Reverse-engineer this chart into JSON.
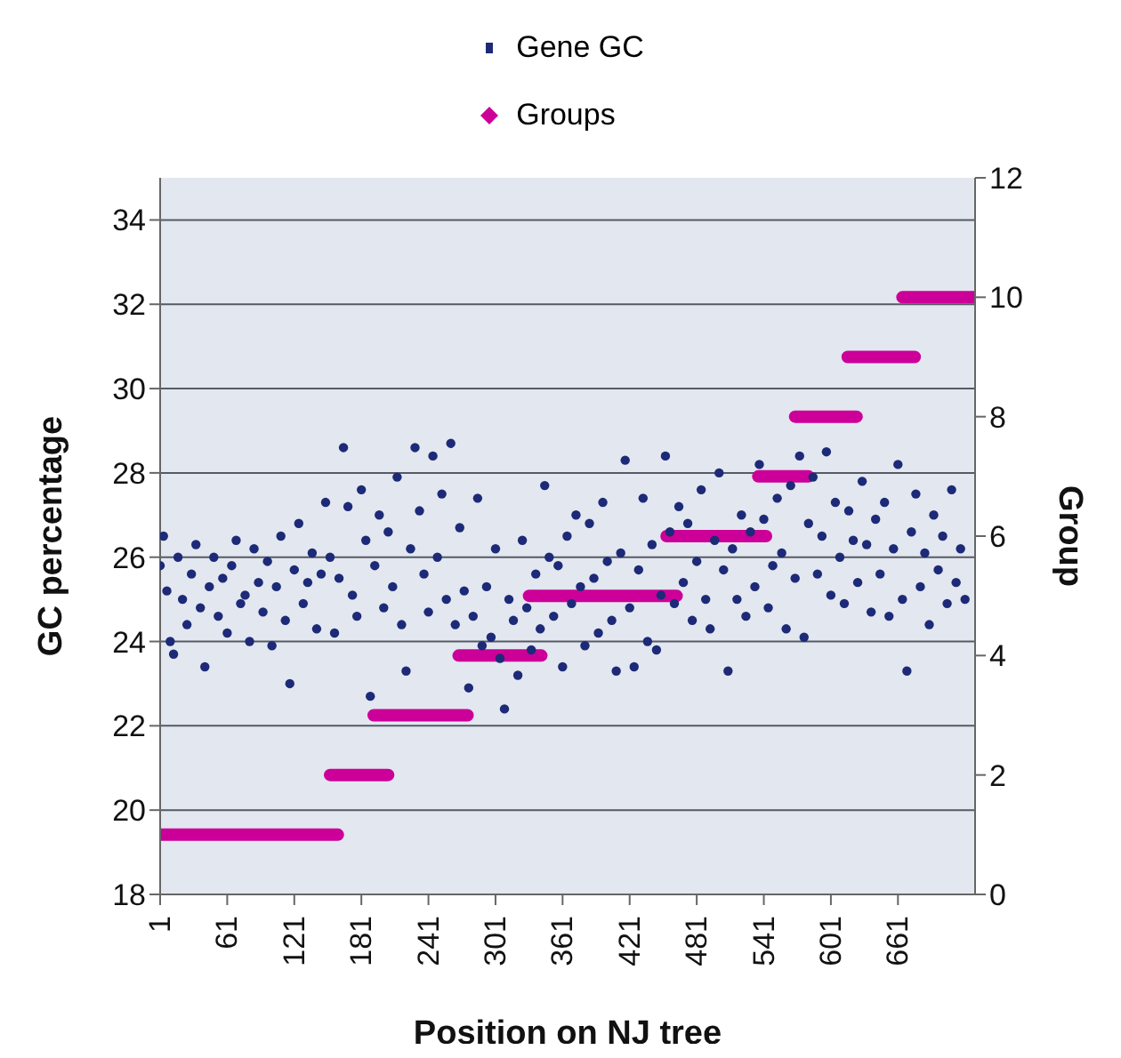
{
  "chart_data": {
    "type": "scatter",
    "xlabel": "Position on NJ tree",
    "ylabel": "GC percentage",
    "y2label": "Group",
    "xlim": [
      1,
      730
    ],
    "xticks": [
      1,
      61,
      121,
      181,
      241,
      301,
      361,
      421,
      481,
      541,
      601,
      661
    ],
    "ylim": [
      18,
      35
    ],
    "yticks": [
      18,
      20,
      22,
      24,
      26,
      28,
      30,
      32,
      34
    ],
    "y2lim": [
      0,
      12
    ],
    "y2ticks": [
      0,
      2,
      4,
      6,
      8,
      10,
      12
    ],
    "grid": "y",
    "legend": "top",
    "series": [
      {
        "name": "Gene GC",
        "marker": "circle",
        "color": "#1c2a78",
        "x": [
          1,
          4,
          7,
          10,
          13,
          17,
          21,
          25,
          29,
          33,
          37,
          41,
          45,
          49,
          53,
          57,
          61,
          65,
          69,
          73,
          77,
          81,
          85,
          89,
          93,
          97,
          101,
          105,
          109,
          113,
          117,
          121,
          125,
          129,
          133,
          137,
          141,
          145,
          149,
          153,
          157,
          161,
          165,
          169,
          173,
          177,
          181,
          185,
          189,
          193,
          197,
          201,
          205,
          209,
          213,
          217,
          221,
          225,
          229,
          233,
          237,
          241,
          245,
          249,
          253,
          257,
          261,
          265,
          269,
          273,
          277,
          281,
          285,
          289,
          293,
          297,
          301,
          305,
          309,
          313,
          317,
          321,
          325,
          329,
          333,
          337,
          341,
          345,
          349,
          353,
          357,
          361,
          365,
          369,
          373,
          377,
          381,
          385,
          389,
          393,
          397,
          401,
          405,
          409,
          413,
          417,
          421,
          425,
          429,
          433,
          437,
          441,
          445,
          449,
          453,
          457,
          461,
          465,
          469,
          473,
          477,
          481,
          485,
          489,
          493,
          497,
          501,
          505,
          509,
          513,
          517,
          521,
          525,
          529,
          533,
          537,
          541,
          545,
          549,
          553,
          557,
          561,
          565,
          569,
          573,
          577,
          581,
          585,
          589,
          593,
          597,
          601,
          605,
          609,
          613,
          617,
          621,
          625,
          629,
          633,
          637,
          641,
          645,
          649,
          653,
          657,
          661,
          665,
          669,
          673,
          677,
          681,
          685,
          689,
          693,
          697,
          701,
          705,
          709,
          713,
          717,
          721
        ],
        "values": [
          25.8,
          26.5,
          25.2,
          24.0,
          23.7,
          26.0,
          25.0,
          24.4,
          25.6,
          26.3,
          24.8,
          23.4,
          25.3,
          26.0,
          24.6,
          25.5,
          24.2,
          25.8,
          26.4,
          24.9,
          25.1,
          24.0,
          26.2,
          25.4,
          24.7,
          25.9,
          23.9,
          25.3,
          26.5,
          24.5,
          23.0,
          25.7,
          26.8,
          24.9,
          25.4,
          26.1,
          24.3,
          25.6,
          27.3,
          26.0,
          24.2,
          25.5,
          28.6,
          27.2,
          25.1,
          24.6,
          27.6,
          26.4,
          22.7,
          25.8,
          27.0,
          24.8,
          26.6,
          25.3,
          27.9,
          24.4,
          23.3,
          26.2,
          28.6,
          27.1,
          25.6,
          24.7,
          28.4,
          26.0,
          27.5,
          25.0,
          28.7,
          24.4,
          26.7,
          25.2,
          22.9,
          24.6,
          27.4,
          23.9,
          25.3,
          24.1,
          26.2,
          23.6,
          22.4,
          25.0,
          24.5,
          23.2,
          26.4,
          24.8,
          23.8,
          25.6,
          24.3,
          27.7,
          26.0,
          24.6,
          25.8,
          23.4,
          26.5,
          24.9,
          27.0,
          25.3,
          23.9,
          26.8,
          25.5,
          24.2,
          27.3,
          25.9,
          24.5,
          23.3,
          26.1,
          28.3,
          24.8,
          23.4,
          25.7,
          27.4,
          24.0,
          26.3,
          23.8,
          25.1,
          28.4,
          26.6,
          24.9,
          27.2,
          25.4,
          26.8,
          24.5,
          25.9,
          27.6,
          25.0,
          24.3,
          26.4,
          28.0,
          25.7,
          23.3,
          26.2,
          25.0,
          27.0,
          24.6,
          26.6,
          25.3,
          28.2,
          26.9,
          24.8,
          25.8,
          27.4,
          26.1,
          24.3,
          27.7,
          25.5,
          28.4,
          24.1,
          26.8,
          27.9,
          25.6,
          26.5,
          28.5,
          25.1,
          27.3,
          26.0,
          24.9,
          27.1,
          26.4,
          25.4,
          27.8,
          26.3,
          24.7,
          26.9,
          25.6,
          27.3,
          24.6,
          26.2,
          28.2,
          25.0,
          23.3,
          26.6,
          27.5,
          25.3,
          26.1,
          24.4,
          27.0,
          25.7,
          26.5,
          24.9,
          27.6,
          25.4,
          26.2,
          25.0
        ]
      },
      {
        "name": "Groups",
        "type": "line",
        "axis": "y2",
        "color": "#cc0099",
        "line_style": "solid",
        "marker": "none",
        "x": [
          1,
          160,
          null,
          153,
          205,
          null,
          192,
          276,
          null,
          268,
          342,
          null,
          331,
          463,
          null,
          454,
          543,
          null,
          536,
          581,
          null,
          569,
          624,
          null,
          616,
          676,
          null,
          665,
          729
        ],
        "values": [
          1,
          1,
          null,
          2,
          2,
          null,
          3,
          3,
          null,
          4,
          4,
          null,
          5,
          5,
          null,
          6,
          6,
          null,
          7,
          7,
          null,
          8,
          8,
          null,
          9,
          9,
          null,
          10,
          10
        ]
      }
    ]
  }
}
